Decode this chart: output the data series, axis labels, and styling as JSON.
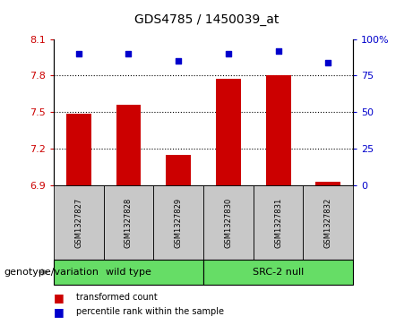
{
  "title": "GDS4785 / 1450039_at",
  "samples": [
    "GSM1327827",
    "GSM1327828",
    "GSM1327829",
    "GSM1327830",
    "GSM1327831",
    "GSM1327832"
  ],
  "bar_values": [
    7.49,
    7.56,
    7.15,
    7.77,
    7.8,
    6.93
  ],
  "percentile_values": [
    90,
    90,
    85,
    90,
    92,
    84
  ],
  "bar_bottom": 6.9,
  "ylim_left": [
    6.9,
    8.1
  ],
  "ylim_right": [
    0,
    100
  ],
  "yticks_left": [
    6.9,
    7.2,
    7.5,
    7.8,
    8.1
  ],
  "yticks_right": [
    0,
    25,
    50,
    75,
    100
  ],
  "ytick_labels_left": [
    "6.9",
    "7.2",
    "7.5",
    "7.8",
    "8.1"
  ],
  "ytick_labels_right": [
    "0",
    "25",
    "50",
    "75",
    "100%"
  ],
  "hlines": [
    7.2,
    7.5,
    7.8
  ],
  "bar_color": "#cc0000",
  "dot_color": "#0000cc",
  "group_label": "genotype/variation",
  "groups": [
    {
      "label": "wild type",
      "count": 3,
      "color": "#66dd66"
    },
    {
      "label": "SRC-2 null",
      "count": 3,
      "color": "#66dd66"
    }
  ],
  "legend_items": [
    {
      "color": "#cc0000",
      "label": "transformed count"
    },
    {
      "color": "#0000cc",
      "label": "percentile rank within the sample"
    }
  ],
  "left_tick_color": "#cc0000",
  "right_tick_color": "#0000cc",
  "sample_box_color": "#c8c8c8",
  "title_fontsize": 10,
  "axis_fontsize": 8,
  "sample_fontsize": 6,
  "group_fontsize": 8,
  "legend_fontsize": 7
}
